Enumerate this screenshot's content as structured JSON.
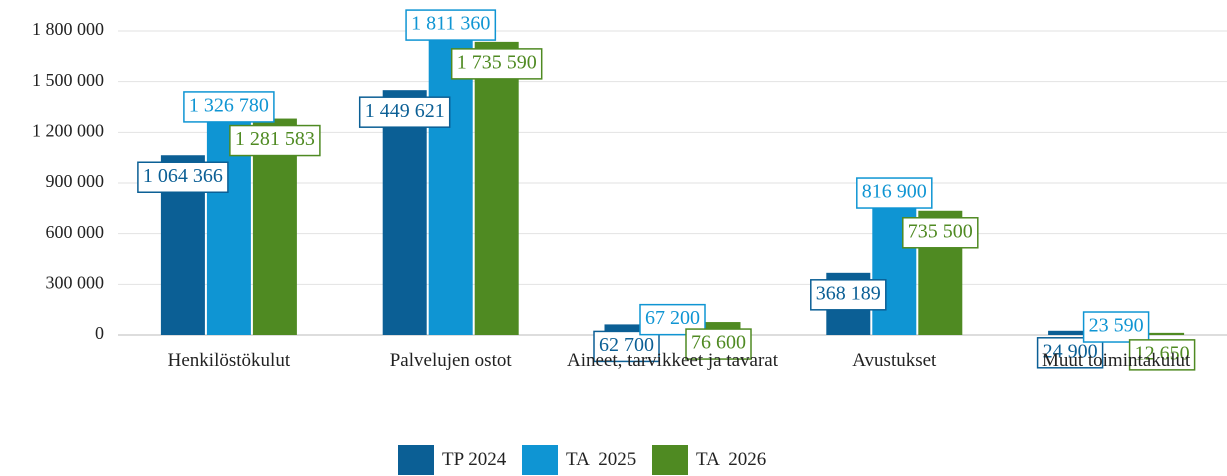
{
  "chart_data": {
    "type": "bar",
    "categories": [
      "Henkilöstökulut",
      "Palvelujen ostot",
      "Aineet, tarvikkeet ja tavarat",
      "Avustukset",
      "Muut toimintakulut"
    ],
    "series": [
      {
        "name": "TP 2024",
        "color": "#0b5f95",
        "values": [
          1064366,
          1449621,
          62700,
          368189,
          24900
        ],
        "value_labels": [
          "1 064 366",
          "1 449 621",
          "62 700",
          "368 189",
          "24 900"
        ]
      },
      {
        "name": "TA  2025",
        "color": "#0f95d3",
        "values": [
          1326780,
          1811360,
          67200,
          816900,
          23590
        ],
        "value_labels": [
          "1 326 780",
          "1 811 360",
          "67 200",
          "816 900",
          "23 590"
        ]
      },
      {
        "name": "TA  2026",
        "color": "#4f8a22",
        "values": [
          1281583,
          1735590,
          76600,
          735500,
          12650
        ],
        "value_labels": [
          "1 281 583",
          "1 735 590",
          "76 600",
          "735 500",
          "12 650"
        ]
      }
    ],
    "ylim": [
      0,
      1800000
    ],
    "yticks": [
      0,
      {
        "value": 300000,
        "label": "300 000"
      },
      {
        "value": 600000,
        "label": "600 000"
      },
      {
        "value": 900000,
        "label": "900 000"
      },
      {
        "value": 1200000,
        "label": "1 200 000"
      },
      {
        "value": 1500000,
        "label": "1 500 000"
      },
      {
        "value": 1800000,
        "label": "1 800 000"
      }
    ],
    "grid": true,
    "legend": "bottom"
  }
}
